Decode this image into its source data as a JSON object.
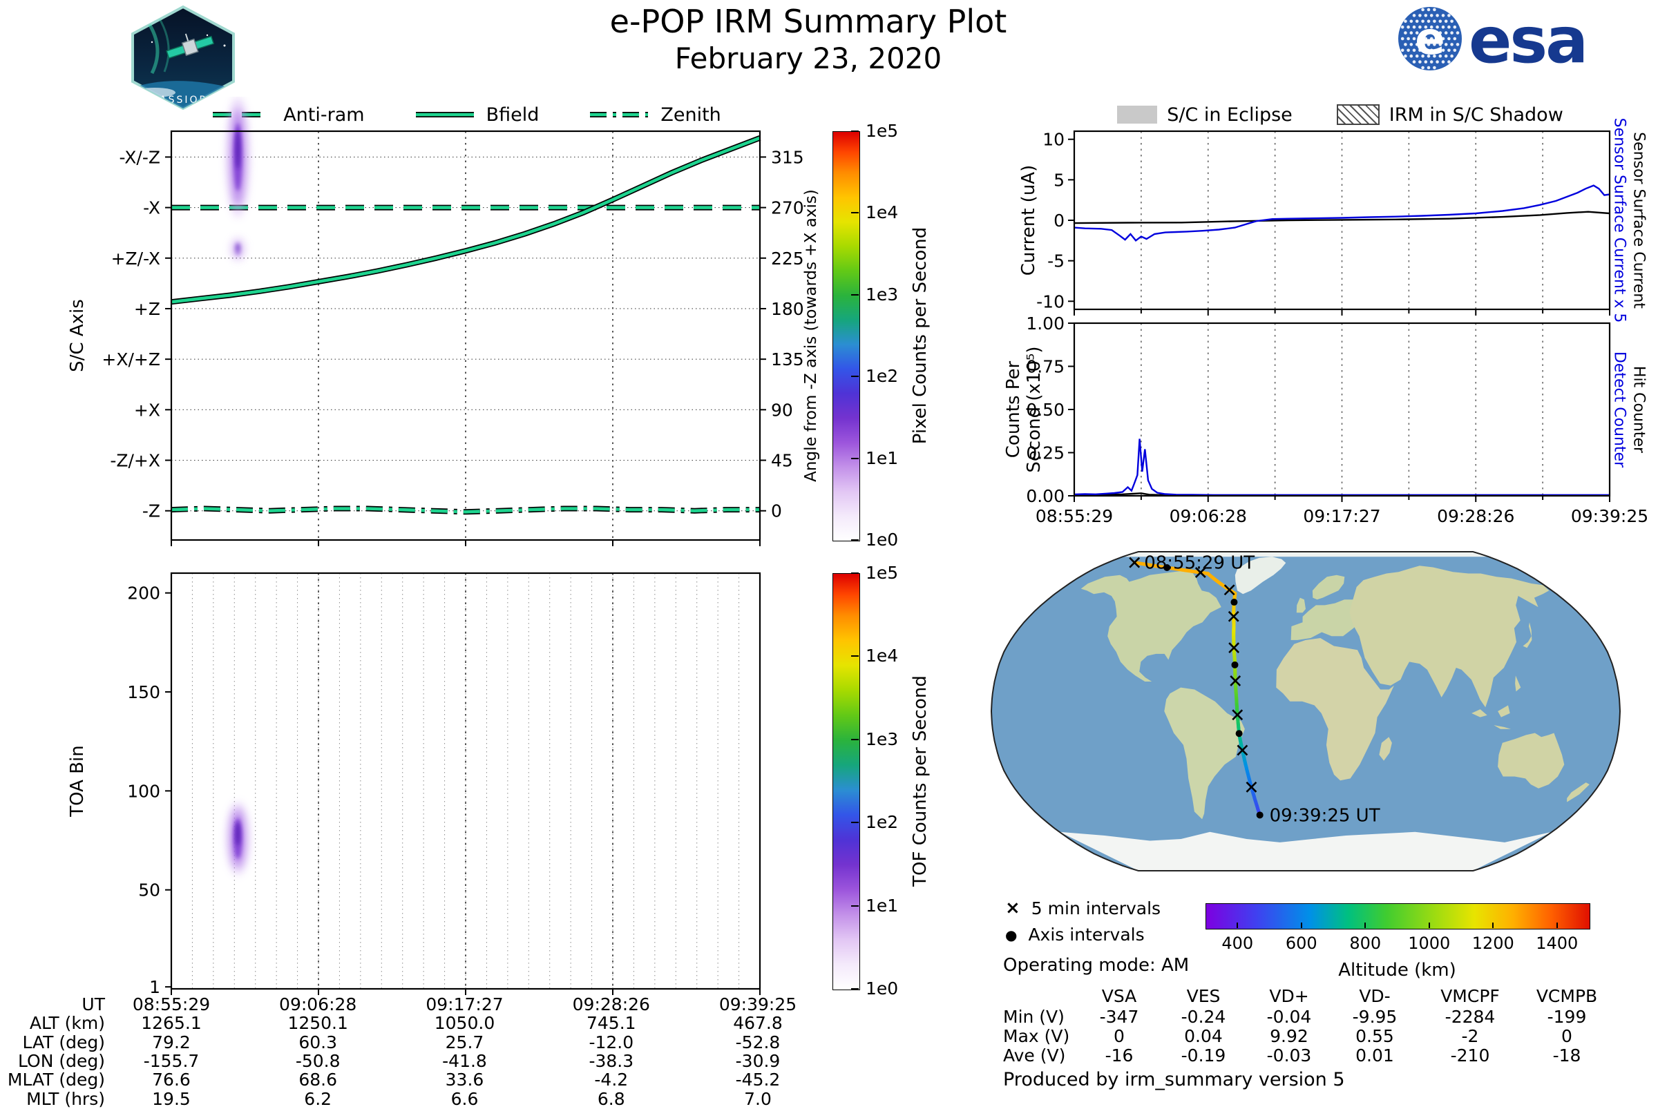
{
  "header": {
    "title": "e-POP IRM Summary Plot",
    "date": "February 23, 2020",
    "badge_text": "CASSIOPE",
    "esa_text": "esa",
    "esa_e": "e"
  },
  "axis_legend": {
    "color": "#1ed48f",
    "items": [
      {
        "label": "Anti-ram",
        "style": "dashed"
      },
      {
        "label": "Bfield",
        "style": "solid"
      },
      {
        "label": "Zenith",
        "style": "dashdot"
      }
    ]
  },
  "eclipse_legend": {
    "items": [
      {
        "label": "S/C in Eclipse",
        "type": "solid",
        "color": "#c9c9c9"
      },
      {
        "label": "IRM in S/C Shadow",
        "type": "hatch"
      }
    ]
  },
  "time_axis": {
    "tick_labels": [
      "08:55:29",
      "09:06:28",
      "09:17:27",
      "09:28:26",
      "09:39:25"
    ]
  },
  "sc_axis_plot": {
    "ylabel": "S/C Axis",
    "yticks": [
      "-X/-Z",
      "-X",
      "+Z/-X",
      "+Z",
      "+X/+Z",
      "+X",
      "-Z/+X",
      "-Z"
    ],
    "right_ylabel": "Angle from -Z axis (towards +X axis)",
    "right_yticks": [
      "315",
      "270",
      "225",
      "180",
      "135",
      "90",
      "45",
      "0"
    ],
    "chart_data": {
      "type": "line",
      "ylim": [
        -26,
        338
      ],
      "series": [
        {
          "name": "Anti-ram",
          "style": "dashed",
          "x": [
            0,
            1
          ],
          "y": [
            270,
            270
          ]
        },
        {
          "name": "Bfield",
          "style": "solid",
          "x": [
            0,
            0.05,
            0.1,
            0.15,
            0.2,
            0.25,
            0.3,
            0.35,
            0.4,
            0.45,
            0.5,
            0.55,
            0.6,
            0.65,
            0.7,
            0.75,
            0.8,
            0.85,
            0.9,
            0.95,
            1
          ],
          "y": [
            186,
            189,
            192,
            195.5,
            199.5,
            204,
            208.5,
            213.5,
            219,
            225,
            231.5,
            238.5,
            246.5,
            255.5,
            265.5,
            277,
            289,
            301,
            312,
            322,
            332
          ]
        },
        {
          "name": "Zenith",
          "style": "dashdot",
          "x": [
            0,
            0.056,
            0.111,
            0.167,
            0.222,
            0.278,
            0.333,
            0.389,
            0.444,
            0.5,
            0.556,
            0.611,
            0.667,
            0.722,
            0.778,
            0.833,
            0.889,
            0.944,
            1
          ],
          "y": [
            1,
            2,
            1,
            0,
            1,
            2,
            2,
            1,
            0,
            -1,
            0,
            1,
            2,
            2,
            1,
            1,
            0,
            1,
            1
          ]
        }
      ],
      "blobs": [
        {
          "x": 0.113,
          "y": 315,
          "rx": 7,
          "ry": 70,
          "opacity": 1
        },
        {
          "x": 0.113,
          "y": 233,
          "rx": 5,
          "ry": 14,
          "opacity": 0.5
        }
      ]
    }
  },
  "pixel_colorbar": {
    "label": "Pixel Counts per Second",
    "ticks": [
      "1e5",
      "1e4",
      "1e3",
      "1e2",
      "1e1",
      "1e0"
    ],
    "stops": [
      [
        0,
        "#ffffff"
      ],
      [
        0.06,
        "#f4eafb"
      ],
      [
        0.12,
        "#e2c6f4"
      ],
      [
        0.18,
        "#c391e9"
      ],
      [
        0.24,
        "#9c55dc"
      ],
      [
        0.3,
        "#7433cf"
      ],
      [
        0.36,
        "#4f33d6"
      ],
      [
        0.42,
        "#3355e8"
      ],
      [
        0.48,
        "#2b8ed2"
      ],
      [
        0.54,
        "#16a67c"
      ],
      [
        0.6,
        "#2bb33c"
      ],
      [
        0.66,
        "#63c916"
      ],
      [
        0.72,
        "#a8da00"
      ],
      [
        0.78,
        "#e6e400"
      ],
      [
        0.84,
        "#ffc400"
      ],
      [
        0.9,
        "#ff8c00"
      ],
      [
        0.95,
        "#ff4600"
      ],
      [
        1,
        "#dd0000"
      ]
    ]
  },
  "toa_plot": {
    "ylabel": "TOA Bin",
    "yticks": [
      "200",
      "150",
      "100",
      "50",
      "1"
    ],
    "chart_data": {
      "type": "heatmap",
      "ylim": [
        0,
        210
      ],
      "blobs": [
        {
          "x": 0.113,
          "y": 76,
          "rx": 7,
          "ry": 42,
          "opacity": 1
        }
      ]
    }
  },
  "tof_colorbar": {
    "label": "TOF Counts per Second",
    "ticks": [
      "1e5",
      "1e4",
      "1e3",
      "1e2",
      "1e1",
      "1e0"
    ]
  },
  "ephemeris_table": {
    "rows": [
      {
        "label": "UT",
        "values": [
          "08:55:29",
          "09:06:28",
          "09:17:27",
          "09:28:26",
          "09:39:25"
        ]
      },
      {
        "label": "ALT (km)",
        "values": [
          "1265.1",
          "1250.1",
          "1050.0",
          "745.1",
          "467.8"
        ]
      },
      {
        "label": "LAT (deg)",
        "values": [
          "79.2",
          "60.3",
          "25.7",
          "-12.0",
          "-52.8"
        ]
      },
      {
        "label": "LON (deg)",
        "values": [
          "-155.7",
          "-50.8",
          "-41.8",
          "-38.3",
          "-30.9"
        ]
      },
      {
        "label": "MLAT (deg)",
        "values": [
          "76.6",
          "68.6",
          "33.6",
          "-4.2",
          "-45.2"
        ]
      },
      {
        "label": "MLT (hrs)",
        "values": [
          "19.5",
          "6.2",
          "6.6",
          "6.8",
          "7.0"
        ]
      }
    ]
  },
  "current_plot": {
    "ylabel": "Current (uA)",
    "yticks": [
      "10",
      "5",
      "0",
      "-5",
      "-10"
    ],
    "right_labels": [
      {
        "text": "Sensor Surface Current x 5",
        "color": "#0000dd"
      },
      {
        "text": "Sensor Surface Current",
        "color": "#000000"
      }
    ],
    "chart_data": {
      "type": "line",
      "ylim": [
        -11,
        11
      ],
      "series": [
        {
          "name": "Sensor Surface Current",
          "color": "#000000",
          "x": [
            0,
            0.1,
            0.2,
            0.3,
            0.4,
            0.5,
            0.6,
            0.7,
            0.8,
            0.87,
            0.92,
            0.96,
            1
          ],
          "y": [
            -0.35,
            -0.3,
            -0.28,
            -0.12,
            0,
            0.05,
            0.1,
            0.2,
            0.42,
            0.65,
            0.9,
            1.05,
            0.85
          ]
        },
        {
          "name": "Sensor Surface Current x 5",
          "color": "#0000dd",
          "x": [
            0,
            0.02,
            0.05,
            0.07,
            0.085,
            0.095,
            0.105,
            0.115,
            0.125,
            0.135,
            0.15,
            0.17,
            0.19,
            0.21,
            0.24,
            0.27,
            0.3,
            0.32,
            0.34,
            0.37,
            0.4,
            0.45,
            0.5,
            0.55,
            0.6,
            0.65,
            0.7,
            0.75,
            0.8,
            0.84,
            0.87,
            0.9,
            0.92,
            0.94,
            0.955,
            0.97,
            0.98,
            0.99,
            1
          ],
          "y": [
            -0.9,
            -1.0,
            -1.05,
            -1.2,
            -1.9,
            -2.4,
            -1.7,
            -2.5,
            -2.0,
            -2.3,
            -1.7,
            -1.5,
            -1.45,
            -1.4,
            -1.3,
            -1.15,
            -0.9,
            -0.5,
            -0.1,
            0.15,
            0.2,
            0.25,
            0.3,
            0.38,
            0.45,
            0.55,
            0.68,
            0.85,
            1.15,
            1.5,
            1.9,
            2.4,
            2.9,
            3.4,
            3.9,
            4.3,
            3.9,
            3.1,
            3.2
          ]
        }
      ]
    }
  },
  "counts_plot": {
    "ylabel_line1": "Counts Per",
    "ylabel_line2": "Second (x10⁵)",
    "yticks": [
      "1.00",
      "0.75",
      "0.50",
      "0.25",
      "0.00"
    ],
    "right_labels": [
      {
        "text": "Detect Counter",
        "color": "#0000dd"
      },
      {
        "text": "Hit Counter",
        "color": "#000000"
      }
    ],
    "chart_data": {
      "type": "line",
      "ylim": [
        0,
        1
      ],
      "series": [
        {
          "name": "Hit Counter",
          "color": "#000000",
          "x": [
            0,
            0.05,
            0.09,
            0.11,
            0.125,
            0.14,
            0.17,
            0.25,
            0.5,
            1
          ],
          "y": [
            0.006,
            0.007,
            0.009,
            0.012,
            0.015,
            0.007,
            0.004,
            0.003,
            0.003,
            0.003
          ]
        },
        {
          "name": "Detect Counter",
          "color": "#0000dd",
          "x": [
            0,
            0.02,
            0.04,
            0.06,
            0.075,
            0.09,
            0.1,
            0.107,
            0.112,
            0.118,
            0.122,
            0.127,
            0.132,
            0.138,
            0.145,
            0.155,
            0.17,
            0.19,
            0.22,
            0.26,
            0.32,
            0.4,
            0.55,
            0.7,
            0.85,
            1
          ],
          "y": [
            0.008,
            0.01,
            0.009,
            0.013,
            0.016,
            0.022,
            0.05,
            0.03,
            0.07,
            0.12,
            0.33,
            0.14,
            0.27,
            0.09,
            0.04,
            0.018,
            0.01,
            0.007,
            0.006,
            0.005,
            0.005,
            0.005,
            0.005,
            0.005,
            0.005,
            0.005
          ]
        }
      ]
    }
  },
  "map_panel": {
    "start_label": "08:55:29 UT",
    "end_label": "09:39:25 UT",
    "marker_legend": [
      {
        "symbol": "×",
        "label": "5 min intervals"
      },
      {
        "symbol": "●",
        "label": "Axis intervals"
      }
    ],
    "operating_mode": "Operating mode: AM",
    "altitude_colorbar": {
      "label": "Altitude (km)",
      "ticks": [
        "400",
        "600",
        "800",
        "1000",
        "1200",
        "1400"
      ],
      "range": [
        300,
        1500
      ],
      "stops": [
        [
          0,
          "#7d00e0"
        ],
        [
          0.13,
          "#4040f0"
        ],
        [
          0.27,
          "#0090e8"
        ],
        [
          0.37,
          "#00c080"
        ],
        [
          0.47,
          "#40cc30"
        ],
        [
          0.6,
          "#a0dc10"
        ],
        [
          0.7,
          "#e8e400"
        ],
        [
          0.8,
          "#ffb000"
        ],
        [
          0.9,
          "#ff6000"
        ],
        [
          1,
          "#e01000"
        ]
      ]
    },
    "chart_data": {
      "type": "track",
      "t": [
        0,
        0.125,
        0.25,
        0.375,
        0.5,
        0.625,
        0.75,
        0.875,
        1
      ],
      "lon": [
        -155.7,
        -80,
        -50.8,
        -45.5,
        -41.8,
        -39.8,
        -38.3,
        -34.5,
        -30.9
      ],
      "lat": [
        79.2,
        72,
        60.3,
        43.5,
        25.7,
        7,
        -12,
        -32.5,
        -52.8
      ],
      "alt_km": [
        1265.1,
        1262,
        1250.1,
        1160,
        1050,
        900,
        745.1,
        600,
        467.8
      ],
      "cross_t": [
        0,
        0.114,
        0.228,
        0.341,
        0.455,
        0.569,
        0.683,
        0.797,
        0.911
      ],
      "dot_t": [
        0.06,
        0.285,
        0.515,
        0.745,
        1
      ]
    }
  },
  "voltage_table": {
    "columns": [
      "VSA",
      "VES",
      "VD+",
      "VD-",
      "VMCPF",
      "VCMPB"
    ],
    "rows": [
      {
        "label": "Min (V)",
        "values": [
          "-347",
          "-0.24",
          "-0.04",
          "-9.95",
          "-2284",
          "-199"
        ]
      },
      {
        "label": "Max (V)",
        "values": [
          "0",
          "0.04",
          "9.92",
          "0.55",
          "-2",
          "0"
        ]
      },
      {
        "label": "Ave (V)",
        "values": [
          "-16",
          "-0.19",
          "-0.03",
          "0.01",
          "-210",
          "-18"
        ]
      }
    ]
  },
  "footer": {
    "produced_by": "Produced by irm_summary version 5"
  }
}
